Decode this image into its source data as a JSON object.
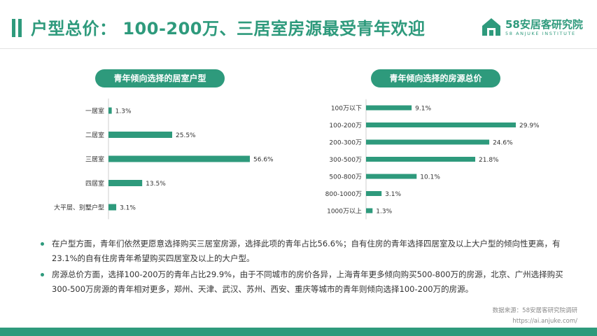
{
  "header": {
    "title": "户型总价： 100-200万、三居室房源最受青年欢迎",
    "logo_name": "58安居客研究院",
    "logo_en": "58 ANJUKE INSTITUTE"
  },
  "colors": {
    "accent": "#2e9a7c",
    "bar": "#2e9a7c",
    "footer": "#2e9a7c"
  },
  "chart_data": [
    {
      "type": "bar",
      "orientation": "horizontal",
      "title": "青年倾向选择的居室户型",
      "categories": [
        "一居室",
        "二居室",
        "三居室",
        "四居室",
        "大平层、别墅户型"
      ],
      "values": [
        1.3,
        25.5,
        56.6,
        13.5,
        3.1
      ],
      "value_labels": [
        "1.3%",
        "25.5%",
        "56.6%",
        "13.5%",
        "3.1%"
      ],
      "unit": "%",
      "grid": false
    },
    {
      "type": "bar",
      "orientation": "horizontal",
      "title": "青年倾向选择的房源总价",
      "categories": [
        "100万以下",
        "100-200万",
        "200-300万",
        "300-500万",
        "500-800万",
        "800-1000万",
        "1000万以上"
      ],
      "values": [
        9.1,
        29.9,
        24.6,
        21.8,
        10.1,
        3.1,
        1.3
      ],
      "value_labels": [
        "9.1%",
        "29.9%",
        "24.6%",
        "21.8%",
        "10.1%",
        "3.1%",
        "1.3%"
      ],
      "unit": "%",
      "grid": false
    }
  ],
  "bullets": [
    "在户型方面，青年们依然更愿意选择购买三居室房源，选择此项的青年占比56.6%；自有住房的青年选择四居室及以上大户型的倾向性更高，有23.1%的自有住房青年希望购买四居室及以上的大户型。",
    "房源总价方面，选择100-200万的青年占比29.9%，由于不同城市的房价各异，上海青年更多倾向购买500-800万的房源，北京、广州选择购买300-500万房源的青年相对更多，郑州、天津、武汉、苏州、西安、重庆等城市的青年则倾向选择100-200万的房源。"
  ],
  "source": {
    "line1": "数据来源：58安居客研究院调研",
    "line2": "https://ai.anjuke.com/"
  }
}
